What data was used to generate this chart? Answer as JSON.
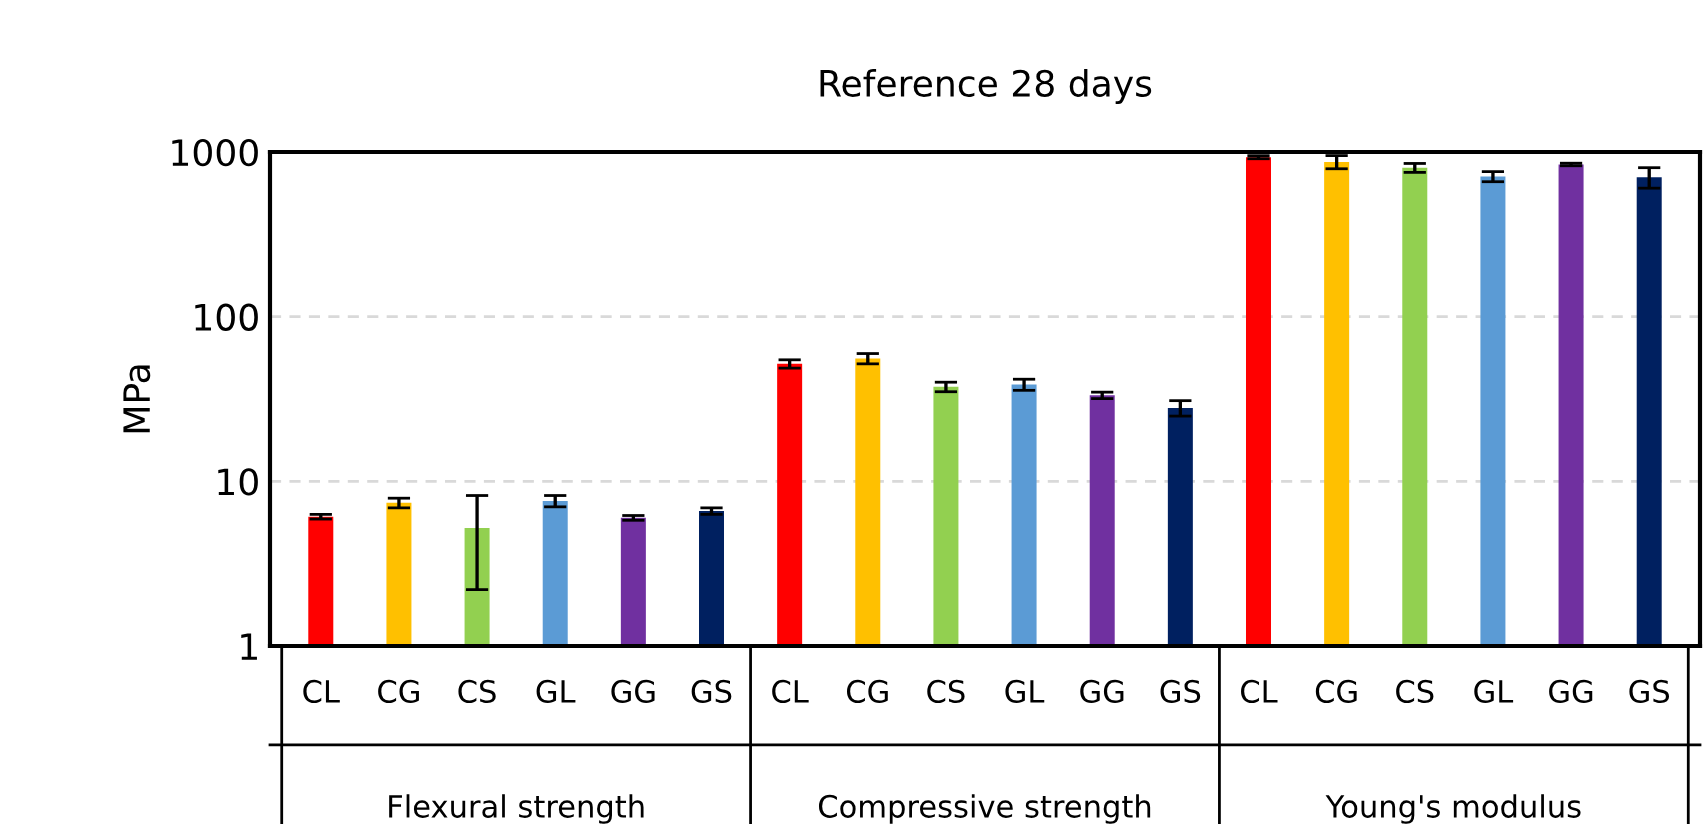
{
  "chart_data": {
    "type": "bar",
    "title": "Reference 28 days",
    "ylabel": "MPa",
    "categories": [
      "CL",
      "CG",
      "CS",
      "GL",
      "GG",
      "GS",
      "CL",
      "CG",
      "CS",
      "GL",
      "GG",
      "GS",
      "CL",
      "CG",
      "CS",
      "GL",
      "GG",
      "GS"
    ],
    "values": [
      6.1,
      7.4,
      5.2,
      7.6,
      6.0,
      6.6,
      51.7,
      55.7,
      37.5,
      38.7,
      33.3,
      27.9,
      930,
      871,
      802,
      710,
      840,
      703
    ],
    "errors": [
      0.2,
      0.5,
      3,
      0.6,
      0.2,
      0.3,
      3,
      4,
      2.5,
      3,
      1.5,
      3,
      20,
      80,
      50,
      50,
      15,
      100
    ],
    "colors": [
      "#ff0000",
      "#ffc000",
      "#92d050",
      "#5b9bd5",
      "#7030a0",
      "#002060",
      "#ff0000",
      "#ffc000",
      "#92d050",
      "#5b9bd5",
      "#7030a0",
      "#002060",
      "#ff0000",
      "#ffc000",
      "#92d050",
      "#5b9bd5",
      "#7030a0",
      "#002060"
    ],
    "annotations": [
      "Flexural strength",
      "Compressive strength",
      "Young's modulus"
    ],
    "log": "y",
    "ylim": [
      1,
      1000
    ],
    "yticks": [
      1,
      10,
      100,
      1000
    ],
    "grid": "y"
  }
}
